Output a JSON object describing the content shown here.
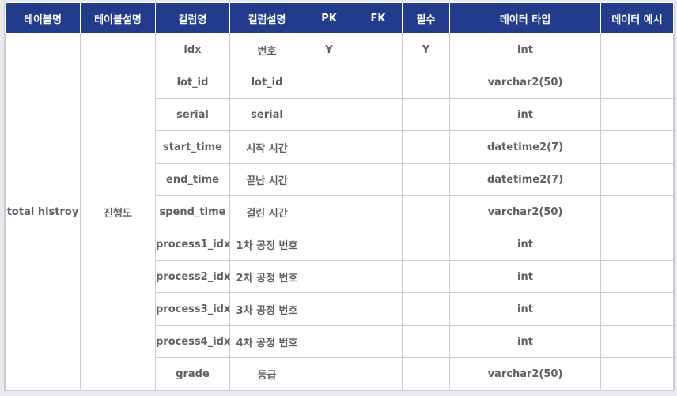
{
  "columns": [
    "테이블명",
    "테이블설명",
    "컬럼명",
    "컬럼설명",
    "PK",
    "FK",
    "필수",
    "데이터 타입",
    "데이터 예시"
  ],
  "table_name": "total histroy",
  "table_description": "진행도",
  "rows": [
    {
      "column": "idx",
      "desc": "번호",
      "pk": "Y",
      "fk": "",
      "required": "Y",
      "type": "int",
      "example": ""
    },
    {
      "column": "lot_id",
      "desc": "lot_id",
      "pk": "",
      "fk": "",
      "required": "",
      "type": "varchar2(50)",
      "example": ""
    },
    {
      "column": "serial",
      "desc": "serial",
      "pk": "",
      "fk": "",
      "required": "",
      "type": "int",
      "example": ""
    },
    {
      "column": "start_time",
      "desc": "시작 시간",
      "pk": "",
      "fk": "",
      "required": "",
      "type": "datetime2(7)",
      "example": ""
    },
    {
      "column": "end_time",
      "desc": "끝난 시간",
      "pk": "",
      "fk": "",
      "required": "",
      "type": "datetime2(7)",
      "example": ""
    },
    {
      "column": "spend_time",
      "desc": "걸린 시간",
      "pk": "",
      "fk": "",
      "required": "",
      "type": "varchar2(50)",
      "example": ""
    },
    {
      "column": "process1_idx",
      "desc": "1차 공정 번호",
      "pk": "",
      "fk": "",
      "required": "",
      "type": "int",
      "example": ""
    },
    {
      "column": "process2_idx",
      "desc": "2차 공정 번호",
      "pk": "",
      "fk": "",
      "required": "",
      "type": "int",
      "example": ""
    },
    {
      "column": "process3_idx",
      "desc": "3차 공정 번호",
      "pk": "",
      "fk": "",
      "required": "",
      "type": "int",
      "example": ""
    },
    {
      "column": "process4_idx",
      "desc": "4차 공정 번호",
      "pk": "",
      "fk": "",
      "required": "",
      "type": "int",
      "example": ""
    },
    {
      "column": "grade",
      "desc": "등급",
      "pk": "",
      "fk": "",
      "required": "",
      "type": "varchar2(50)",
      "example": ""
    }
  ],
  "colors": {
    "header_bg": "#233b8b",
    "header_text": "#ffffff",
    "cell_text": "#5f6066",
    "border": "#c9ccd2"
  }
}
